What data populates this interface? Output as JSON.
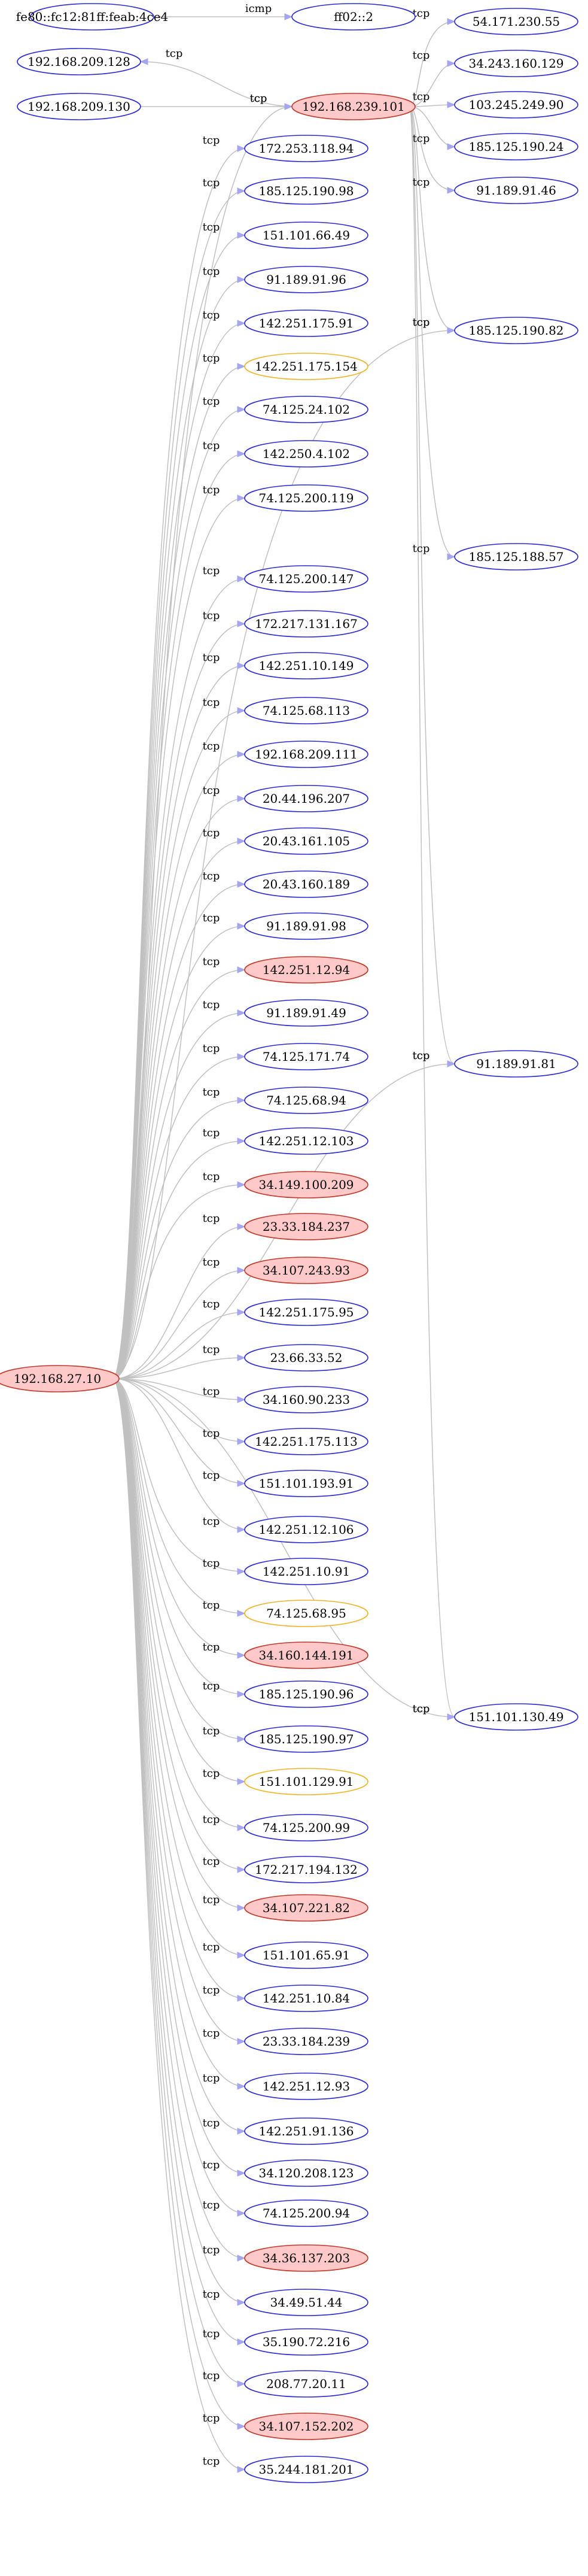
{
  "graph": {
    "colors": {
      "background": "#ffffff",
      "edge": "#c0c0c0",
      "arrow": "#a6a6f0",
      "node_normal_stroke": "#2b2bd4",
      "node_normal_fill": "#ffffff",
      "node_warn_stroke": "#f0b429",
      "node_warn_fill": "#ffffff",
      "node_alert_stroke": "#c0392b",
      "node_alert_fill": "#ffc9c9"
    },
    "nodes": [
      {
        "id": "n_fe80",
        "label": "fe80::fc12:81ff:feab:4ce4",
        "style": "normal"
      },
      {
        "id": "n_ff02",
        "label": "ff02::2",
        "style": "normal"
      },
      {
        "id": "n_209_128",
        "label": "192.168.209.128",
        "style": "normal"
      },
      {
        "id": "n_209_130",
        "label": "192.168.209.130",
        "style": "normal"
      },
      {
        "id": "n_239_101",
        "label": "192.168.239.101",
        "style": "alert"
      },
      {
        "id": "n_27_10",
        "label": "192.168.27.10",
        "style": "alert"
      },
      {
        "id": "r_54_171",
        "label": "54.171.230.55",
        "style": "normal"
      },
      {
        "id": "r_34_243",
        "label": "34.243.160.129",
        "style": "normal"
      },
      {
        "id": "r_103_245",
        "label": "103.245.249.90",
        "style": "normal"
      },
      {
        "id": "r_185_190_24",
        "label": "185.125.190.24",
        "style": "normal"
      },
      {
        "id": "r_91_189_46",
        "label": "91.189.91.46",
        "style": "normal"
      },
      {
        "id": "r_185_190_82",
        "label": "185.125.190.82",
        "style": "normal"
      },
      {
        "id": "r_185_188_57",
        "label": "185.125.188.57",
        "style": "normal"
      },
      {
        "id": "r_91_189_81",
        "label": "91.189.91.81",
        "style": "normal"
      },
      {
        "id": "r_151_130_49",
        "label": "151.101.130.49",
        "style": "normal"
      },
      {
        "id": "m_01",
        "label": "172.253.118.94",
        "style": "normal"
      },
      {
        "id": "m_02",
        "label": "185.125.190.98",
        "style": "normal"
      },
      {
        "id": "m_03",
        "label": "151.101.66.49",
        "style": "normal"
      },
      {
        "id": "m_04",
        "label": "91.189.91.96",
        "style": "normal"
      },
      {
        "id": "m_05",
        "label": "142.251.175.91",
        "style": "normal"
      },
      {
        "id": "m_06",
        "label": "142.251.175.154",
        "style": "warn"
      },
      {
        "id": "m_07",
        "label": "74.125.24.102",
        "style": "normal"
      },
      {
        "id": "m_08",
        "label": "142.250.4.102",
        "style": "normal"
      },
      {
        "id": "m_09",
        "label": "74.125.200.119",
        "style": "normal"
      },
      {
        "id": "m_10",
        "label": "74.125.200.147",
        "style": "normal"
      },
      {
        "id": "m_11",
        "label": "172.217.131.167",
        "style": "normal"
      },
      {
        "id": "m_12",
        "label": "142.251.10.149",
        "style": "normal"
      },
      {
        "id": "m_13",
        "label": "74.125.68.113",
        "style": "normal"
      },
      {
        "id": "m_14",
        "label": "192.168.209.111",
        "style": "normal"
      },
      {
        "id": "m_15",
        "label": "20.44.196.207",
        "style": "normal"
      },
      {
        "id": "m_16",
        "label": "20.43.161.105",
        "style": "normal"
      },
      {
        "id": "m_17",
        "label": "20.43.160.189",
        "style": "normal"
      },
      {
        "id": "m_18",
        "label": "91.189.91.98",
        "style": "normal"
      },
      {
        "id": "m_19",
        "label": "142.251.12.94",
        "style": "alert"
      },
      {
        "id": "m_20",
        "label": "91.189.91.49",
        "style": "normal"
      },
      {
        "id": "m_21",
        "label": "74.125.171.74",
        "style": "normal"
      },
      {
        "id": "m_22",
        "label": "74.125.68.94",
        "style": "normal"
      },
      {
        "id": "m_23",
        "label": "142.251.12.103",
        "style": "normal"
      },
      {
        "id": "m_24",
        "label": "34.149.100.209",
        "style": "alert"
      },
      {
        "id": "m_25",
        "label": "23.33.184.237",
        "style": "alert"
      },
      {
        "id": "m_26",
        "label": "34.107.243.93",
        "style": "alert"
      },
      {
        "id": "m_27",
        "label": "142.251.175.95",
        "style": "normal"
      },
      {
        "id": "m_28",
        "label": "23.66.33.52",
        "style": "normal"
      },
      {
        "id": "m_29",
        "label": "34.160.90.233",
        "style": "normal"
      },
      {
        "id": "m_30",
        "label": "142.251.175.113",
        "style": "normal"
      },
      {
        "id": "m_31",
        "label": "151.101.193.91",
        "style": "normal"
      },
      {
        "id": "m_32",
        "label": "142.251.12.106",
        "style": "normal"
      },
      {
        "id": "m_33",
        "label": "142.251.10.91",
        "style": "normal"
      },
      {
        "id": "m_34",
        "label": "74.125.68.95",
        "style": "warn"
      },
      {
        "id": "m_35",
        "label": "34.160.144.191",
        "style": "alert"
      },
      {
        "id": "m_36",
        "label": "185.125.190.96",
        "style": "normal"
      },
      {
        "id": "m_37",
        "label": "185.125.190.97",
        "style": "normal"
      },
      {
        "id": "m_38",
        "label": "151.101.129.91",
        "style": "warn"
      },
      {
        "id": "m_39",
        "label": "74.125.200.99",
        "style": "normal"
      },
      {
        "id": "m_40",
        "label": "172.217.194.132",
        "style": "normal"
      },
      {
        "id": "m_41",
        "label": "34.107.221.82",
        "style": "alert"
      },
      {
        "id": "m_42",
        "label": "151.101.65.91",
        "style": "normal"
      },
      {
        "id": "m_43",
        "label": "142.251.10.84",
        "style": "normal"
      },
      {
        "id": "m_44",
        "label": "23.33.184.239",
        "style": "normal"
      },
      {
        "id": "m_45",
        "label": "142.251.12.93",
        "style": "normal"
      },
      {
        "id": "m_46",
        "label": "142.251.91.136",
        "style": "normal"
      },
      {
        "id": "m_47",
        "label": "34.120.208.123",
        "style": "normal"
      },
      {
        "id": "m_48",
        "label": "74.125.200.94",
        "style": "normal"
      },
      {
        "id": "m_49",
        "label": "34.36.137.203",
        "style": "alert"
      },
      {
        "id": "m_50",
        "label": "34.49.51.44",
        "style": "normal"
      },
      {
        "id": "m_51",
        "label": "35.190.72.216",
        "style": "normal"
      },
      {
        "id": "m_52",
        "label": "208.77.20.11",
        "style": "normal"
      },
      {
        "id": "m_53",
        "label": "34.107.152.202",
        "style": "alert"
      },
      {
        "id": "m_54",
        "label": "35.244.181.201",
        "style": "normal"
      }
    ],
    "edges": [
      {
        "from": "n_fe80",
        "to": "n_ff02",
        "label": "icmp"
      },
      {
        "from": "n_239_101",
        "to": "n_209_128",
        "label": "tcp"
      },
      {
        "from": "n_209_130",
        "to": "n_239_101",
        "label": "tcp"
      },
      {
        "from": "n_239_101",
        "to": "r_54_171",
        "label": "tcp"
      },
      {
        "from": "n_239_101",
        "to": "r_34_243",
        "label": "tcp"
      },
      {
        "from": "n_239_101",
        "to": "r_103_245",
        "label": "tcp"
      },
      {
        "from": "n_239_101",
        "to": "r_185_190_24",
        "label": "tcp"
      },
      {
        "from": "n_239_101",
        "to": "r_91_189_46",
        "label": "tcp"
      },
      {
        "from": "n_239_101",
        "to": "r_185_190_82",
        "label": "tcp"
      },
      {
        "from": "n_239_101",
        "to": "r_185_188_57",
        "label": "tcp"
      },
      {
        "from": "n_239_101",
        "to": "r_91_189_81",
        "label": "tcp"
      },
      {
        "from": "n_239_101",
        "to": "r_151_130_49",
        "label": "tcp"
      },
      {
        "from": "n_27_10",
        "to": "n_239_101",
        "label": "tcp"
      },
      {
        "from": "n_27_10",
        "to": "r_185_190_82",
        "label": "tcp"
      },
      {
        "from": "n_27_10",
        "to": "r_91_189_81",
        "label": "tcp"
      },
      {
        "from": "n_27_10",
        "to": "r_151_130_49",
        "label": "tcp"
      },
      {
        "from": "n_27_10",
        "to": "m_01",
        "label": "tcp"
      },
      {
        "from": "n_27_10",
        "to": "m_02",
        "label": "tcp"
      },
      {
        "from": "n_27_10",
        "to": "m_03",
        "label": "tcp"
      },
      {
        "from": "n_27_10",
        "to": "m_04",
        "label": "tcp"
      },
      {
        "from": "n_27_10",
        "to": "m_05",
        "label": "tcp"
      },
      {
        "from": "n_27_10",
        "to": "m_06",
        "label": "tcp"
      },
      {
        "from": "n_27_10",
        "to": "m_07",
        "label": "tcp"
      },
      {
        "from": "n_27_10",
        "to": "m_08",
        "label": "tcp"
      },
      {
        "from": "n_27_10",
        "to": "m_09",
        "label": "tcp"
      },
      {
        "from": "n_27_10",
        "to": "m_10",
        "label": "tcp"
      },
      {
        "from": "n_27_10",
        "to": "m_11",
        "label": "tcp"
      },
      {
        "from": "n_27_10",
        "to": "m_12",
        "label": "tcp"
      },
      {
        "from": "n_27_10",
        "to": "m_13",
        "label": "tcp"
      },
      {
        "from": "n_27_10",
        "to": "m_14",
        "label": "tcp"
      },
      {
        "from": "n_27_10",
        "to": "m_15",
        "label": "tcp"
      },
      {
        "from": "n_27_10",
        "to": "m_16",
        "label": "tcp"
      },
      {
        "from": "n_27_10",
        "to": "m_17",
        "label": "tcp"
      },
      {
        "from": "n_27_10",
        "to": "m_18",
        "label": "tcp"
      },
      {
        "from": "n_27_10",
        "to": "m_19",
        "label": "tcp"
      },
      {
        "from": "n_27_10",
        "to": "m_20",
        "label": "tcp"
      },
      {
        "from": "n_27_10",
        "to": "m_21",
        "label": "tcp"
      },
      {
        "from": "n_27_10",
        "to": "m_22",
        "label": "tcp"
      },
      {
        "from": "n_27_10",
        "to": "m_23",
        "label": "tcp"
      },
      {
        "from": "n_27_10",
        "to": "m_24",
        "label": "tcp"
      },
      {
        "from": "n_27_10",
        "to": "m_25",
        "label": "tcp"
      },
      {
        "from": "n_27_10",
        "to": "m_26",
        "label": "tcp"
      },
      {
        "from": "n_27_10",
        "to": "m_27",
        "label": "tcp"
      },
      {
        "from": "n_27_10",
        "to": "m_28",
        "label": "tcp"
      },
      {
        "from": "n_27_10",
        "to": "m_29",
        "label": "tcp"
      },
      {
        "from": "n_27_10",
        "to": "m_30",
        "label": "tcp"
      },
      {
        "from": "n_27_10",
        "to": "m_31",
        "label": "tcp"
      },
      {
        "from": "n_27_10",
        "to": "m_32",
        "label": "tcp"
      },
      {
        "from": "n_27_10",
        "to": "m_33",
        "label": "tcp"
      },
      {
        "from": "n_27_10",
        "to": "m_34",
        "label": "tcp"
      },
      {
        "from": "n_27_10",
        "to": "m_35",
        "label": "tcp"
      },
      {
        "from": "n_27_10",
        "to": "m_36",
        "label": "tcp"
      },
      {
        "from": "n_27_10",
        "to": "m_37",
        "label": "tcp"
      },
      {
        "from": "n_27_10",
        "to": "m_38",
        "label": "tcp"
      },
      {
        "from": "n_27_10",
        "to": "m_39",
        "label": "tcp"
      },
      {
        "from": "n_27_10",
        "to": "m_40",
        "label": "tcp"
      },
      {
        "from": "n_27_10",
        "to": "m_41",
        "label": "tcp"
      },
      {
        "from": "n_27_10",
        "to": "m_42",
        "label": "tcp"
      },
      {
        "from": "n_27_10",
        "to": "m_43",
        "label": "tcp"
      },
      {
        "from": "n_27_10",
        "to": "m_44",
        "label": "tcp"
      },
      {
        "from": "n_27_10",
        "to": "m_45",
        "label": "tcp"
      },
      {
        "from": "n_27_10",
        "to": "m_46",
        "label": "tcp"
      },
      {
        "from": "n_27_10",
        "to": "m_47",
        "label": "tcp"
      },
      {
        "from": "n_27_10",
        "to": "m_48",
        "label": "tcp"
      },
      {
        "from": "n_27_10",
        "to": "m_49",
        "label": "tcp"
      },
      {
        "from": "n_27_10",
        "to": "m_50",
        "label": "tcp"
      },
      {
        "from": "n_27_10",
        "to": "m_51",
        "label": "tcp"
      },
      {
        "from": "n_27_10",
        "to": "m_52",
        "label": "tcp"
      },
      {
        "from": "n_27_10",
        "to": "m_53",
        "label": "tcp"
      },
      {
        "from": "n_27_10",
        "to": "m_54",
        "label": "tcp"
      }
    ]
  }
}
